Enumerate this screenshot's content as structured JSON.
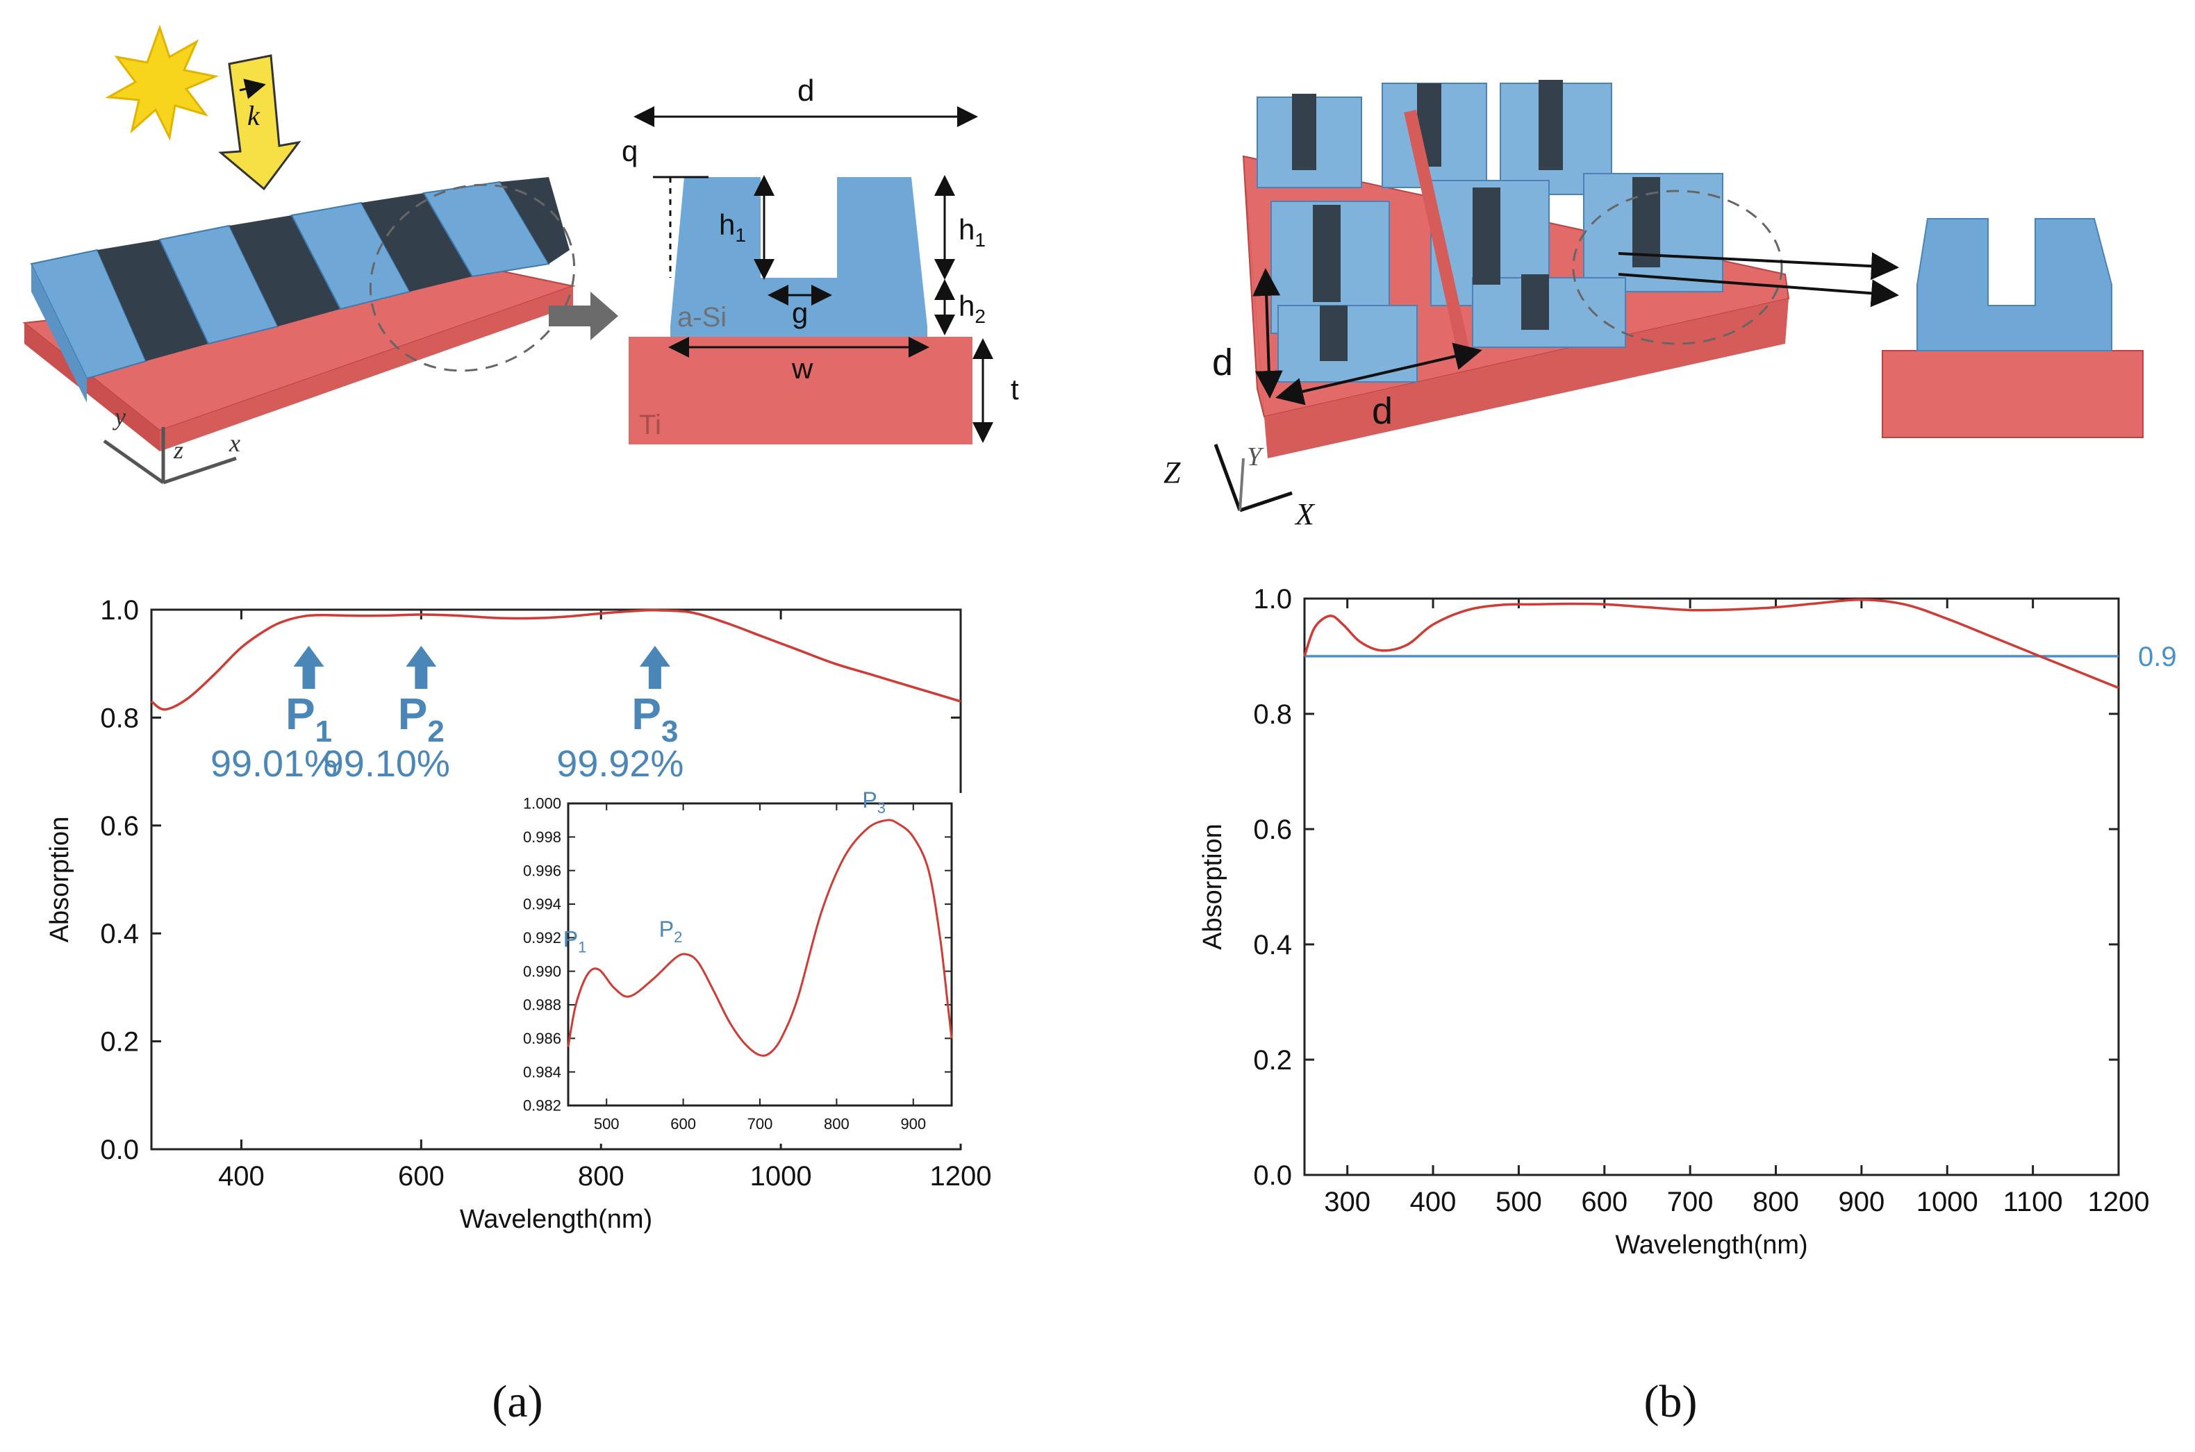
{
  "colors": {
    "blue": "#6fa8d6",
    "blue_dark": "#4a83b8",
    "red": "#d9534f",
    "red_fill": "#e26a68",
    "label_blue": "#4b86b8",
    "curve_red": "#cf3b35",
    "threshold_blue": "#4a90c8"
  },
  "figure_a": {
    "caption": "(a)",
    "schematic": {
      "labels": {
        "d": "d",
        "q": "q",
        "h1_left": "h",
        "h1_right": "h",
        "h1_sub": "1",
        "h2": "h",
        "h2_sub": "2",
        "g": "g",
        "w": "w",
        "t": "t",
        "asi": "a-Si",
        "ti": "Ti",
        "k": "k",
        "axis_y": "y",
        "axis_z": "z",
        "axis_x": "x"
      }
    }
  },
  "figure_b": {
    "caption": "(b)",
    "schematic": {
      "labels": {
        "d_vertical": "d",
        "d_horizontal": "d",
        "axis_z": "Z",
        "axis_y": "Y",
        "axis_x": "X"
      }
    }
  },
  "chart_data": [
    {
      "id": "a-main",
      "type": "line",
      "title": "",
      "xlabel": "Wavelength(nm)",
      "ylabel": "Absorption",
      "xlim": [
        300,
        1200
      ],
      "ylim": [
        0.0,
        1.0
      ],
      "x_ticks": [
        400,
        600,
        800,
        1000,
        1200
      ],
      "y_ticks": [
        "0.0",
        "0.2",
        "0.4",
        "0.6",
        "0.8",
        "1.0"
      ],
      "series": [
        {
          "name": "absorption",
          "x": [
            300,
            315,
            340,
            370,
            400,
            430,
            450,
            470,
            490,
            520,
            560,
            600,
            640,
            680,
            720,
            760,
            800,
            840,
            860,
            900,
            940,
            980,
            1020,
            1060,
            1100,
            1150,
            1200
          ],
          "y": [
            0.83,
            0.815,
            0.835,
            0.88,
            0.93,
            0.965,
            0.98,
            0.988,
            0.99,
            0.989,
            0.989,
            0.991,
            0.989,
            0.985,
            0.984,
            0.987,
            0.993,
            0.998,
            0.999,
            0.995,
            0.975,
            0.95,
            0.925,
            0.9,
            0.88,
            0.855,
            0.83
          ]
        }
      ],
      "annotations": [
        {
          "label": "P",
          "sub": "1",
          "value": "99.01%",
          "x": 475
        },
        {
          "label": "P",
          "sub": "2",
          "value": "99.10%",
          "x": 600
        },
        {
          "label": "P",
          "sub": "3",
          "value": "99.92%",
          "x": 860
        }
      ]
    },
    {
      "id": "a-inset",
      "type": "line",
      "title": "",
      "xlabel": "",
      "ylabel": "",
      "xlim": [
        450,
        950
      ],
      "ylim": [
        0.982,
        1.0
      ],
      "x_ticks": [
        500,
        600,
        700,
        800,
        900
      ],
      "y_ticks": [
        "0.982",
        "0.984",
        "0.986",
        "0.988",
        "0.990",
        "0.992",
        "0.994",
        "0.996",
        "0.998",
        "1.000"
      ],
      "series": [
        {
          "name": "absorption",
          "x": [
            450,
            460,
            475,
            490,
            510,
            530,
            560,
            590,
            605,
            620,
            640,
            660,
            680,
            700,
            715,
            730,
            750,
            780,
            810,
            840,
            865,
            880,
            900,
            920,
            935,
            945,
            950
          ],
          "y": [
            0.9855,
            0.988,
            0.9898,
            0.9901,
            0.989,
            0.9885,
            0.9895,
            0.9908,
            0.991,
            0.9905,
            0.9888,
            0.987,
            0.9857,
            0.985,
            0.9852,
            0.9862,
            0.9885,
            0.9935,
            0.9968,
            0.9985,
            0.999,
            0.9988,
            0.998,
            0.996,
            0.992,
            0.988,
            0.986
          ]
        }
      ],
      "annotations": [
        {
          "label": "P",
          "sub": "1",
          "x": 475
        },
        {
          "label": "P",
          "sub": "2",
          "x": 600
        },
        {
          "label": "P",
          "sub": "3",
          "x": 865
        }
      ]
    },
    {
      "id": "b-main",
      "type": "line",
      "title": "",
      "xlabel": "Wavelength(nm)",
      "ylabel": "Absorption",
      "xlim": [
        250,
        1200
      ],
      "ylim": [
        0.0,
        1.0
      ],
      "x_ticks": [
        300,
        400,
        500,
        600,
        700,
        800,
        900,
        1000,
        1100,
        1200
      ],
      "y_ticks": [
        "0.0",
        "0.2",
        "0.4",
        "0.6",
        "0.8",
        "1.0"
      ],
      "series": [
        {
          "name": "absorption",
          "x": [
            250,
            262,
            280,
            295,
            315,
            340,
            370,
            400,
            440,
            480,
            520,
            560,
            600,
            650,
            700,
            750,
            800,
            850,
            900,
            950,
            1000,
            1050,
            1100,
            1150,
            1200
          ],
          "y": [
            0.9,
            0.95,
            0.97,
            0.955,
            0.925,
            0.91,
            0.92,
            0.955,
            0.98,
            0.989,
            0.99,
            0.991,
            0.99,
            0.985,
            0.98,
            0.981,
            0.985,
            0.992,
            0.998,
            0.99,
            0.965,
            0.935,
            0.905,
            0.875,
            0.845
          ]
        }
      ],
      "threshold": {
        "y": 0.9,
        "label": "0.9"
      }
    }
  ]
}
